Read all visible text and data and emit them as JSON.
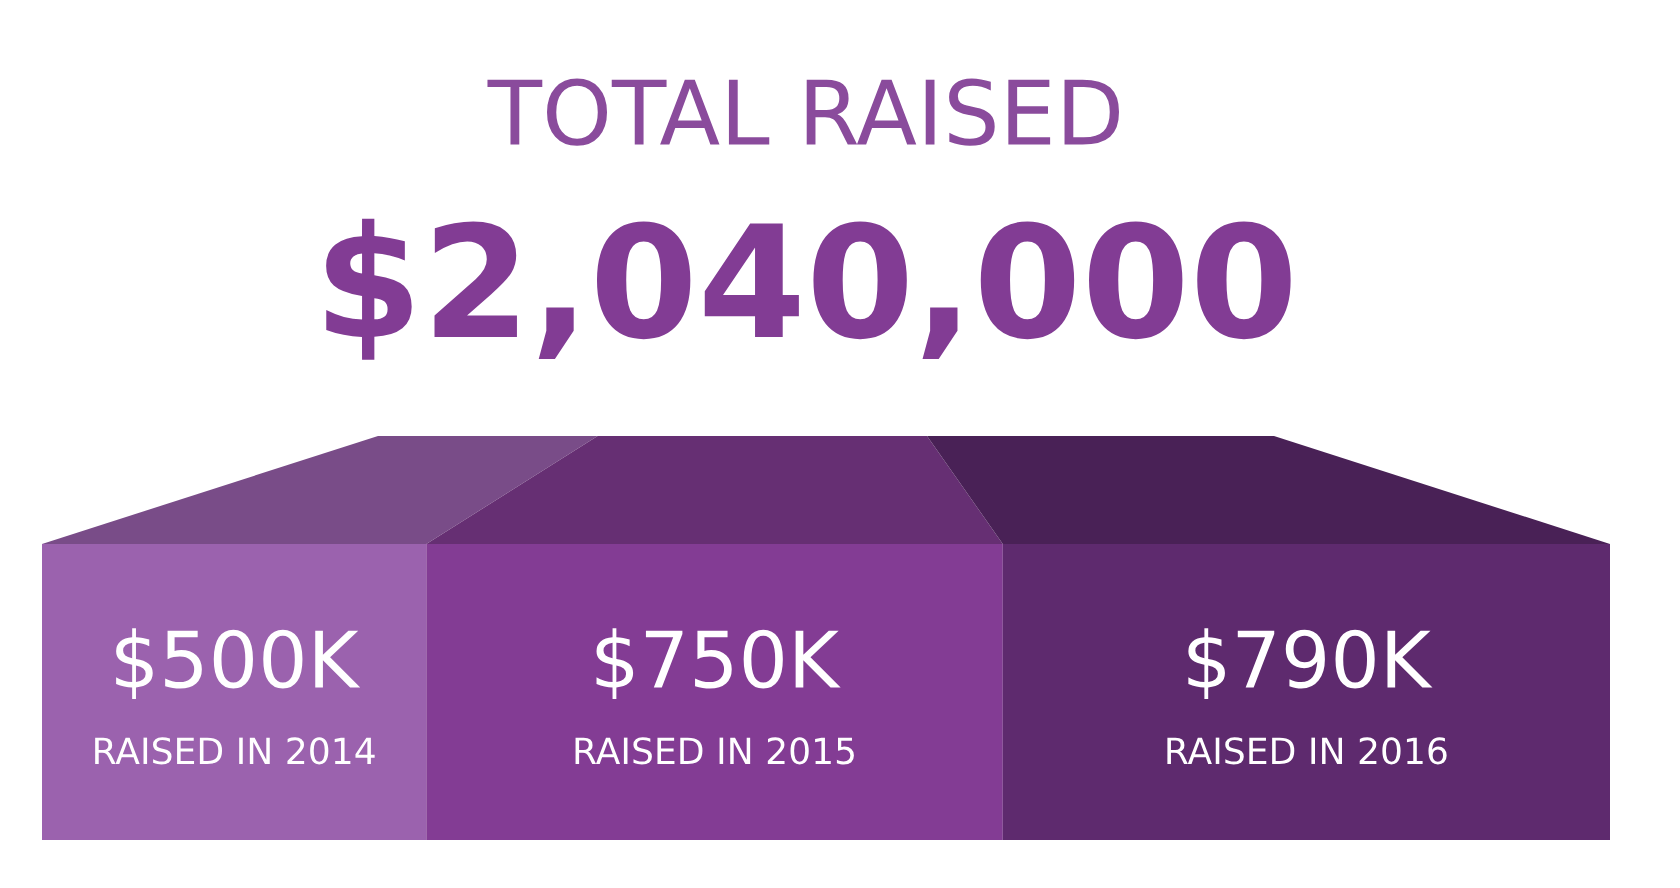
{
  "chart_data": {
    "type": "other",
    "title": "TOTAL RAISED",
    "subtitle": "$2,040,000",
    "categories": [
      "RAISED IN 2014",
      "RAISED IN 2015",
      "RAISED IN 2016"
    ],
    "values": [
      500,
      750,
      790
    ],
    "value_labels": [
      "$500K",
      "$750K",
      "$790K"
    ],
    "colors": [
      "#9b62ae",
      "#833c94",
      "#5e2a6e"
    ]
  }
}
